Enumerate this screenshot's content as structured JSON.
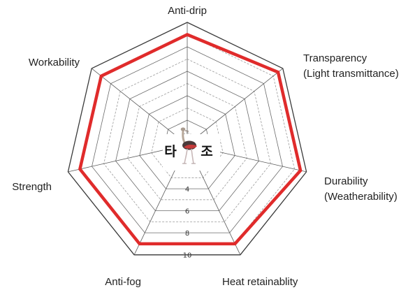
{
  "chart_data": {
    "type": "radar",
    "title": "",
    "axes": [
      [
        "Anti-drip"
      ],
      [
        "Transparency",
        "(Light transmittance)"
      ],
      [
        "Durability",
        "(Weatherability)"
      ],
      [
        "Heat retainablity"
      ],
      [
        "Anti-fog"
      ],
      [
        "Strength"
      ],
      [
        "Workability"
      ]
    ],
    "rlim": [
      0,
      10
    ],
    "tick_values": [
      2,
      4,
      6,
      8,
      10
    ],
    "tick_labels": [
      "2",
      "4",
      "6",
      "8",
      "10"
    ],
    "series": [
      {
        "values": [
          9,
          9.5,
          9.5,
          9,
          9,
          9,
          9
        ],
        "color": "#e02b2b"
      }
    ],
    "grid": true,
    "gridlines": 10,
    "center_logo": {
      "icon": "ostrich-icon",
      "left_glyph": "타",
      "right_glyph": "조"
    }
  }
}
